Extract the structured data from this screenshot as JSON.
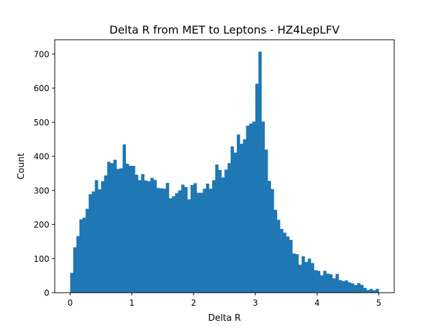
{
  "chart_data": {
    "type": "bar",
    "title": "Delta R from MET to Leptons - HZ4LepLFV",
    "xlabel": "Delta R",
    "ylabel": "Count",
    "xlim": [
      -0.25,
      5.25
    ],
    "ylim": [
      0,
      742
    ],
    "xticks": [
      0,
      1,
      2,
      3,
      4,
      5
    ],
    "xtick_labels": [
      "0",
      "1",
      "2",
      "3",
      "4",
      "5"
    ],
    "yticks": [
      0,
      100,
      200,
      300,
      400,
      500,
      600,
      700
    ],
    "ytick_labels": [
      "0",
      "100",
      "200",
      "300",
      "400",
      "500",
      "600",
      "700"
    ],
    "bar_color": "#1f77b4",
    "grid": false,
    "bin_start": 0.0,
    "bin_width": 0.05,
    "values": [
      58,
      133,
      166,
      215,
      220,
      246,
      289,
      297,
      330,
      303,
      327,
      344,
      384,
      380,
      390,
      363,
      365,
      435,
      378,
      372,
      372,
      346,
      330,
      348,
      329,
      327,
      337,
      331,
      307,
      306,
      305,
      322,
      277,
      283,
      292,
      300,
      317,
      310,
      274,
      316,
      321,
      293,
      293,
      305,
      320,
      305,
      330,
      376,
      360,
      338,
      361,
      380,
      429,
      411,
      464,
      437,
      450,
      490,
      496,
      502,
      613,
      707,
      502,
      420,
      328,
      304,
      243,
      214,
      187,
      176,
      165,
      155,
      115,
      113,
      82,
      107,
      90,
      100,
      87,
      66,
      64,
      51,
      64,
      56,
      54,
      42,
      55,
      37,
      34,
      36,
      30,
      27,
      22,
      28,
      23,
      14,
      8,
      11,
      7,
      11
    ]
  }
}
